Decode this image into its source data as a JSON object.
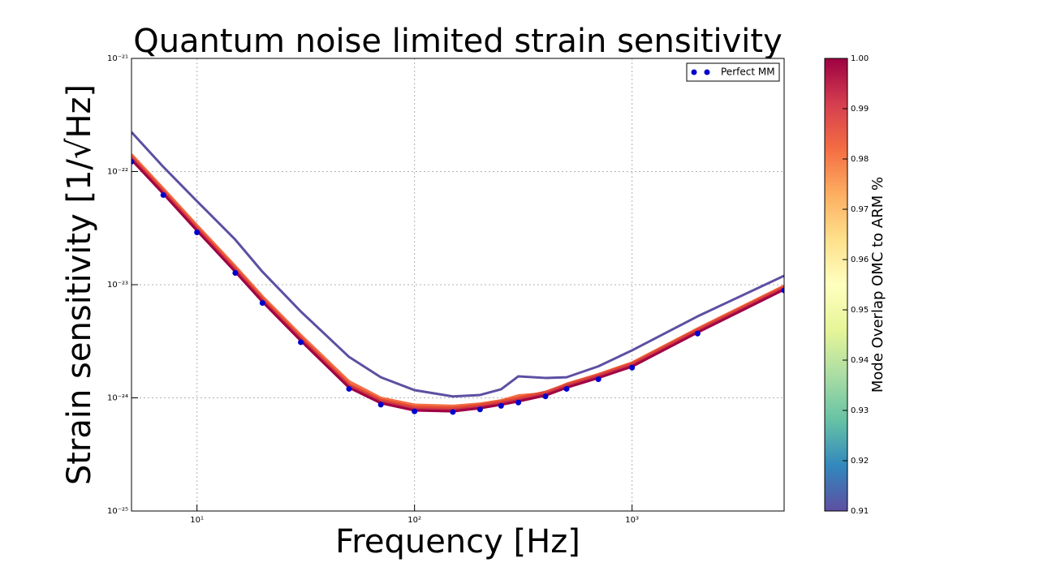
{
  "chart_data": {
    "type": "line",
    "title": "Quantum noise limited strain sensitivity",
    "x_label": "Frequency [Hz]",
    "y_label": "Strain sensitivity [1/√Hz]",
    "xscale": "log",
    "yscale": "log",
    "grid": true,
    "legend": "upper right",
    "xlim": [
      5,
      5000
    ],
    "ylim": [
      1e-25,
      1e-21
    ],
    "xticks": [
      {
        "value": 10,
        "label": "10¹"
      },
      {
        "value": 100,
        "label": "10²"
      },
      {
        "value": 1000,
        "label": "10³"
      }
    ],
    "yticks": [
      {
        "value": 1e-25,
        "label": "10⁻²⁵"
      },
      {
        "value": 1e-24,
        "label": "10⁻²⁴"
      },
      {
        "value": 1e-23,
        "label": "10⁻²³"
      },
      {
        "value": 1e-22,
        "label": "10⁻²²"
      },
      {
        "value": 1e-21,
        "label": "10⁻²¹"
      }
    ],
    "x": [
      5,
      7,
      10,
      15,
      20,
      30,
      50,
      70,
      100,
      150,
      200,
      250,
      300,
      400,
      500,
      700,
      1000,
      2000,
      5000
    ],
    "series": [
      {
        "color": "#5e4fa2",
        "values": [
          2.23e-22,
          1.1e-22,
          5.47e-23,
          2.5e-23,
          1.3e-23,
          5.8e-24,
          2.3e-24,
          1.52e-24,
          1.17e-24,
          1.03e-24,
          1.06e-24,
          1.19e-24,
          1.55e-24,
          1.5e-24,
          1.52e-24,
          1.9e-24,
          2.63e-24,
          5.25e-24,
          1.2e-23
        ]
      },
      {
        "color": "#f46d43",
        "values": [
          1.42e-22,
          7.1e-23,
          3.36e-23,
          1.46e-23,
          7.9e-24,
          3.6e-24,
          1.4e-24,
          1e-24,
          8.7e-25,
          8.5e-25,
          8.9e-25,
          9.5e-25,
          1.05e-24,
          1.1e-24,
          1.33e-24,
          1.62e-24,
          2.05e-24,
          4.1e-24,
          9.8e-24
        ]
      },
      {
        "color": "#e34a33",
        "values": [
          1.36e-22,
          6.8e-23,
          3.2e-23,
          1.4e-23,
          7.55e-24,
          3.42e-24,
          1.32e-24,
          9.6e-25,
          8.3e-25,
          8.15e-25,
          8.7e-25,
          9.3e-25,
          1e-24,
          1.13e-24,
          1.32e-24,
          1.6e-24,
          2.02e-24,
          4.04e-24,
          9.6e-24
        ]
      },
      {
        "color": "#c9304a",
        "values": [
          1.31e-22,
          6.56e-23,
          3.09e-23,
          1.34e-23,
          7.27e-24,
          3.3e-24,
          1.27e-24,
          9.25e-25,
          7.97e-25,
          7.83e-25,
          8.34e-25,
          8.96e-25,
          9.58e-25,
          1.08e-24,
          1.27e-24,
          1.55e-24,
          1.95e-24,
          3.89e-24,
          9.33e-24
        ]
      },
      {
        "color": "#9e0142",
        "values": [
          1.27e-22,
          6.37e-23,
          3e-23,
          1.3e-23,
          7.06e-24,
          3.2e-24,
          1.23e-24,
          8.98e-25,
          7.74e-25,
          7.6e-25,
          8.1e-25,
          8.7e-25,
          9.3e-25,
          1.05e-24,
          1.23e-24,
          1.5e-24,
          1.89e-24,
          3.78e-24,
          9.06e-24
        ]
      },
      {
        "name": "Perfect MM",
        "kind": "markers",
        "color": "#0000cd",
        "values": [
          1.22e-22,
          6.2e-23,
          2.9e-23,
          1.27e-23,
          6.9e-24,
          3.1e-24,
          1.2e-24,
          8.7e-25,
          7.6e-25,
          7.5e-25,
          7.9e-25,
          8.5e-25,
          9.1e-25,
          1.03e-24,
          1.2e-24,
          1.46e-24,
          1.85e-24,
          3.7e-24,
          8.9e-24
        ]
      }
    ],
    "colorbar": {
      "label": "Mode Overlap OMC to ARM %",
      "lim": [
        0.91,
        1.0
      ],
      "ticks": [
        0.91,
        0.92,
        0.93,
        0.94,
        0.95,
        0.96,
        0.97,
        0.98,
        0.99,
        {
          "value": 1.0,
          "label": "1.00"
        }
      ],
      "colors": [
        "#5e4fa2",
        "#3288bd",
        "#66c2a5",
        "#abdda4",
        "#e6f598",
        "#ffffbf",
        "#fee08b",
        "#fdae61",
        "#f46d43",
        "#d53e4f",
        "#9e0142"
      ]
    }
  }
}
